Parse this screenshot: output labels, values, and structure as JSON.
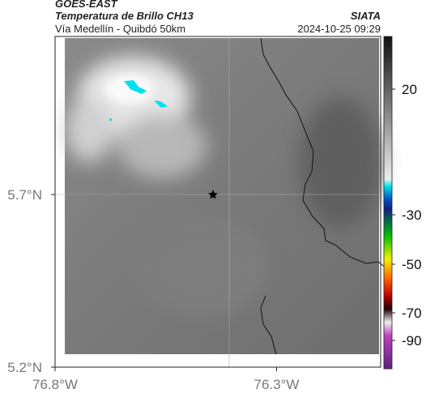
{
  "header": {
    "title": "GOES-EAST",
    "subtitle": "Temperatura de Brillo CH13",
    "location": "Vía Medellín - Quibdó 50km",
    "source": "SIATA",
    "datetime": "2024-10-25 09:29"
  },
  "map": {
    "xlim": [
      -76.8,
      -76.065
    ],
    "ylim": [
      5.2,
      6.158
    ],
    "xticks": [
      {
        "value": -76.8,
        "label": "76.8°W"
      },
      {
        "value": -76.3,
        "label": "76.3°W"
      }
    ],
    "yticks": [
      {
        "value": 5.2,
        "label": "5.2°N"
      },
      {
        "value": 5.7,
        "label": "5.7°N"
      }
    ],
    "colorbar_ticks": [
      20,
      -30,
      -50,
      -70,
      -90
    ]
  }
}
